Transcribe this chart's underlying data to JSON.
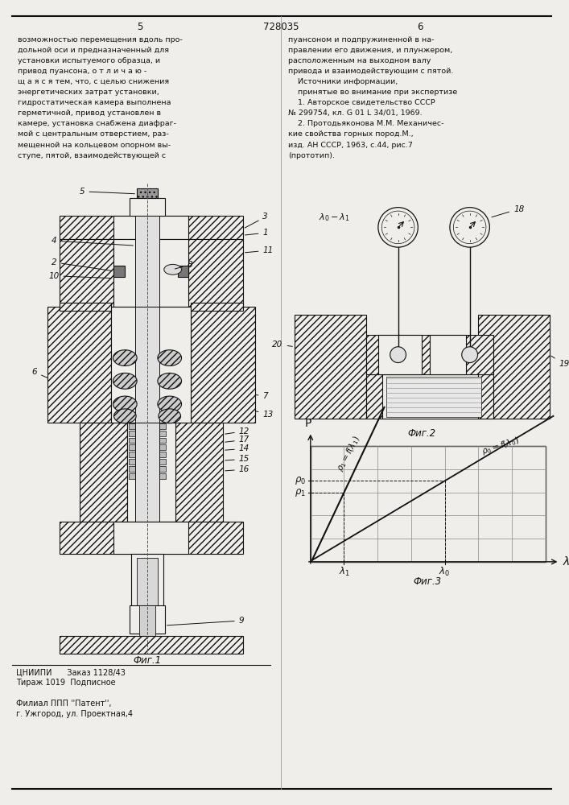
{
  "page_number_left": "5",
  "page_number_center": "728035",
  "page_number_right": "6",
  "left_text": [
    "возможностью перемещения вдоль про-",
    "дольной оси и предназначенный для",
    "установки испытуемого образца, и",
    "привод пуансона, о т л и ч а ю -",
    "щ а я с я тем, что, с целью снижения",
    "энергетических затрат установки,",
    "гидростатическая камера выполнена",
    "герметичной, привод установлен в",
    "камере, установка снабжена диафраг-",
    "мой с центральным отверстием, раз-",
    "мещенной на кольцевом опорном вы-",
    "ступе, пятой, взаимодействующей с"
  ],
  "right_text_col1": [
    "пуансоном и подпружиненной в на-",
    "правлении его движения, и плунжером,",
    "расположенным на выходном валу",
    "привода и взаимодействующим с пятой.",
    "    Источники информации,",
    "    принятые во внимание при экспертизе",
    "    1. Авторское свидетельство СССР",
    "№ 299754, кл. G 01 L 34/01, 1969.",
    "    2. Протодьяконова М.М. Механичес-",
    "кие свойства горных пород.М.,",
    "изд. АН СССР, 1963, с.44, рис.7",
    "(прототип)."
  ],
  "fig1_label": "Фиг.1",
  "fig2_label": "Фиг.2",
  "fig3_label": "Фиг.3",
  "bottom_text": [
    "ЦНИИПИ      Заказ 1128/43",
    "Тираж 1019  Подписное",
    "",
    "Филиал ППП ''Патент'',",
    "г. Ужгород, ул. Проектная,4"
  ],
  "bg_color": "#f0eeea",
  "line_color": "#111111",
  "text_color": "#111111"
}
